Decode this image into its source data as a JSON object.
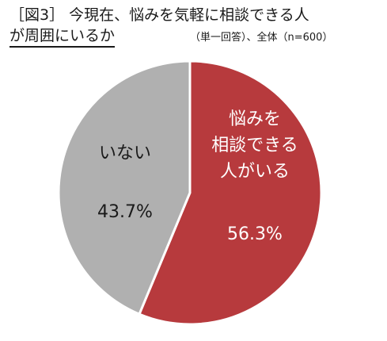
{
  "title": {
    "line1": "［図3］ 今現在、悩みを気軽に相談できる人",
    "line2": "が周囲にいるか",
    "subtitle": "（単一回答）、全体（n=600）"
  },
  "colors": {
    "slice_yes": "#b73a3d",
    "slice_no": "#b0b0b0",
    "label_yes": "#ffffff",
    "label_no": "#1a1a1a"
  },
  "chart_data": {
    "type": "pie",
    "title": "［図3］ 今現在、悩みを気軽に相談できる人が周囲にいるか",
    "subtitle": "（単一回答）、全体（n=600）",
    "slices": [
      {
        "label_lines": [
          "悩みを",
          "相談できる",
          "人がいる"
        ],
        "value": 56.3,
        "value_label": "56.3%"
      },
      {
        "label_lines": [
          "いない"
        ],
        "value": 43.7,
        "value_label": "43.7%"
      }
    ]
  }
}
